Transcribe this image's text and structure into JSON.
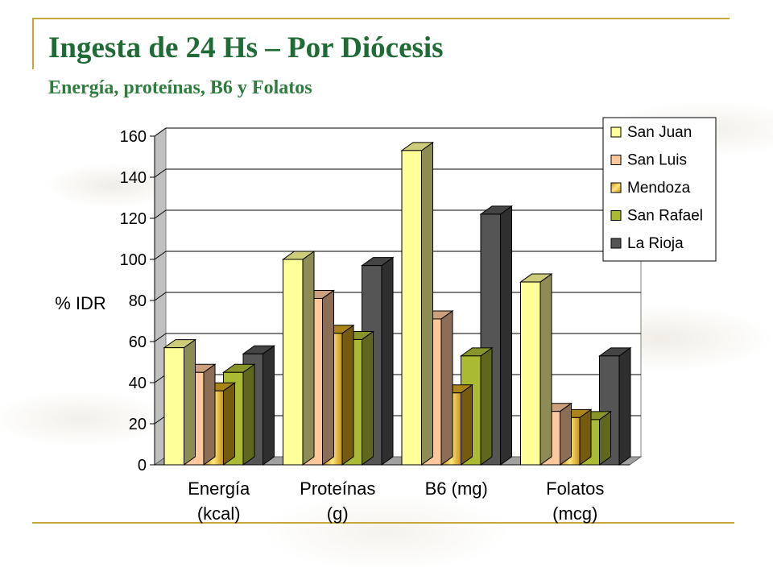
{
  "slide": {
    "title": "Ingesta de 24 Hs – Por Diócesis",
    "subtitle": "Energía, proteínas, B6 y Folatos"
  },
  "chart_data": {
    "type": "bar",
    "ylabel": "% IDR",
    "xlabel": "",
    "ylim": [
      0,
      160
    ],
    "yticks": [
      0,
      20,
      40,
      60,
      80,
      100,
      120,
      140,
      160
    ],
    "grid": true,
    "legend_position": "top-right",
    "categories": [
      [
        "Energía",
        "(kcal)"
      ],
      [
        "Proteínas",
        "(g)"
      ],
      [
        "B6 (mg)"
      ],
      [
        "Folatos",
        "(mcg)"
      ]
    ],
    "series": [
      {
        "name": "San Juan",
        "color": "#ffff99",
        "values": [
          57,
          100,
          153,
          89
        ]
      },
      {
        "name": "San Luis",
        "color": "#ffc89c",
        "values": [
          45,
          81,
          71,
          26
        ]
      },
      {
        "name": "Mendoza",
        "color": "#d4a51c",
        "values": [
          36,
          64,
          35,
          23
        ]
      },
      {
        "name": "San Rafael",
        "color": "#aabb33",
        "values": [
          45,
          61,
          53,
          22
        ]
      },
      {
        "name": "La Rioja",
        "color": "#555555",
        "values": [
          54,
          97,
          122,
          53
        ]
      }
    ]
  }
}
